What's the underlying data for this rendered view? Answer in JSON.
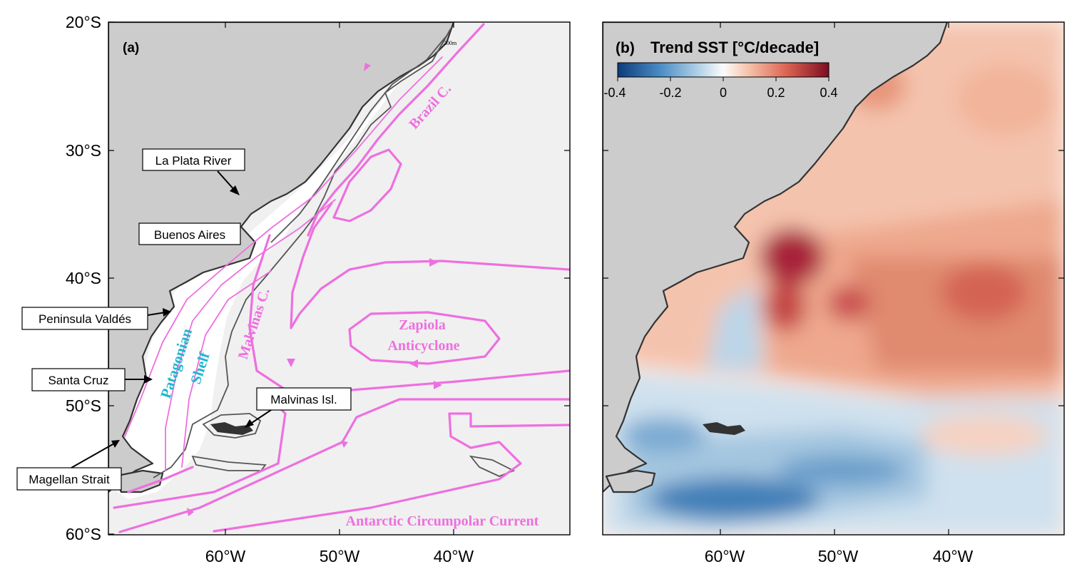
{
  "panel_a": {
    "label": "(a)",
    "isobath_label": "200m",
    "lat_ticks": [
      "20°S",
      "30°S",
      "40°S",
      "50°S",
      "60°S"
    ],
    "lon_ticks": [
      "60°W",
      "50°W",
      "40°W"
    ],
    "place_labels": {
      "la_plata": "La Plata River",
      "buenos_aires": "Buenos Aires",
      "valdes": "Peninsula Valdés",
      "santa_cruz": "Santa Cruz",
      "magellan": "Magellan Strait",
      "malvinas_isl": "Malvinas Isl."
    },
    "current_labels": {
      "brazil": "Brazil C.",
      "malvinas": "Malvinas C.",
      "zapiola_1": "Zapiola",
      "zapiola_2": "Anticyclone",
      "acc": "Antarctic Circumpolar Current",
      "shelf_1": "Patagonian",
      "shelf_2": "Shelf"
    },
    "colors": {
      "land": "#cccccc",
      "ocean": "#f0f0f0",
      "shelf": "#ffffff",
      "currents": "#ee6fdf",
      "shelf_label": "#22b5cf"
    }
  },
  "panel_b": {
    "title_prefix": "(b)",
    "title": "Trend SST [°C/decade]",
    "colorbar_ticks": [
      "-0.4",
      "-0.2",
      "0",
      "0.2",
      "0.4"
    ],
    "colorbar_range": [
      -0.4,
      0.4
    ],
    "lon_ticks": [
      "60°W",
      "50°W",
      "40°W"
    ],
    "colors": {
      "neg": "#1f5fa0",
      "zero": "#ffffff",
      "pos": "#a01a2a"
    }
  }
}
